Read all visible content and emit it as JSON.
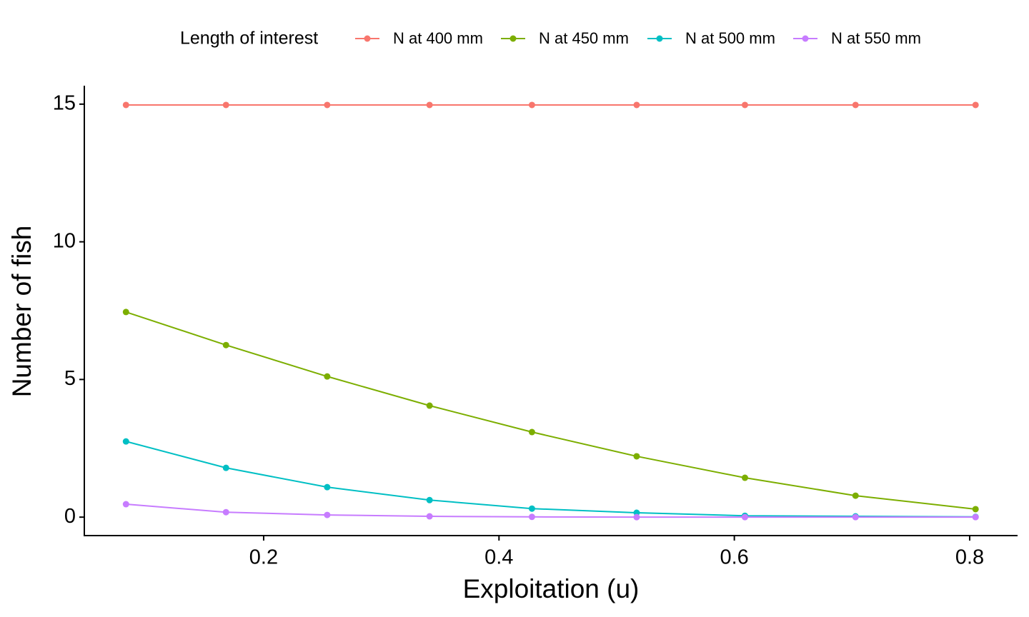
{
  "chart_data": {
    "type": "line",
    "x_label": "Exploitation (u)",
    "y_label": "Number of fish",
    "legend_title": "Length of interest",
    "legend_position": "top",
    "x": [
      0.083,
      0.168,
      0.254,
      0.341,
      0.428,
      0.517,
      0.609,
      0.703,
      0.805
    ],
    "series": [
      {
        "name": "N at 400 mm",
        "color": "#F8766D",
        "values": [
          14.97,
          14.97,
          14.97,
          14.97,
          14.97,
          14.97,
          14.97,
          14.97,
          14.97
        ]
      },
      {
        "name": "N at 450 mm",
        "color": "#7CAE00",
        "values": [
          7.45,
          6.25,
          5.11,
          4.05,
          3.09,
          2.21,
          1.43,
          0.78,
          0.29
        ]
      },
      {
        "name": "N at 500 mm",
        "color": "#00BFC4",
        "values": [
          2.75,
          1.79,
          1.09,
          0.62,
          0.31,
          0.16,
          0.05,
          0.03,
          0.01
        ]
      },
      {
        "name": "N at 550 mm",
        "color": "#C77CFF",
        "values": [
          0.47,
          0.18,
          0.08,
          0.03,
          0.01,
          0,
          0,
          0,
          0
        ]
      }
    ],
    "xlim": [
      0.0476,
      0.8407
    ],
    "xticks": [
      0.2,
      0.4,
      0.6,
      0.8
    ],
    "ylim": [
      -0.67,
      15.67
    ],
    "yticks": [
      0,
      5,
      10,
      15
    ],
    "grid": false
  }
}
